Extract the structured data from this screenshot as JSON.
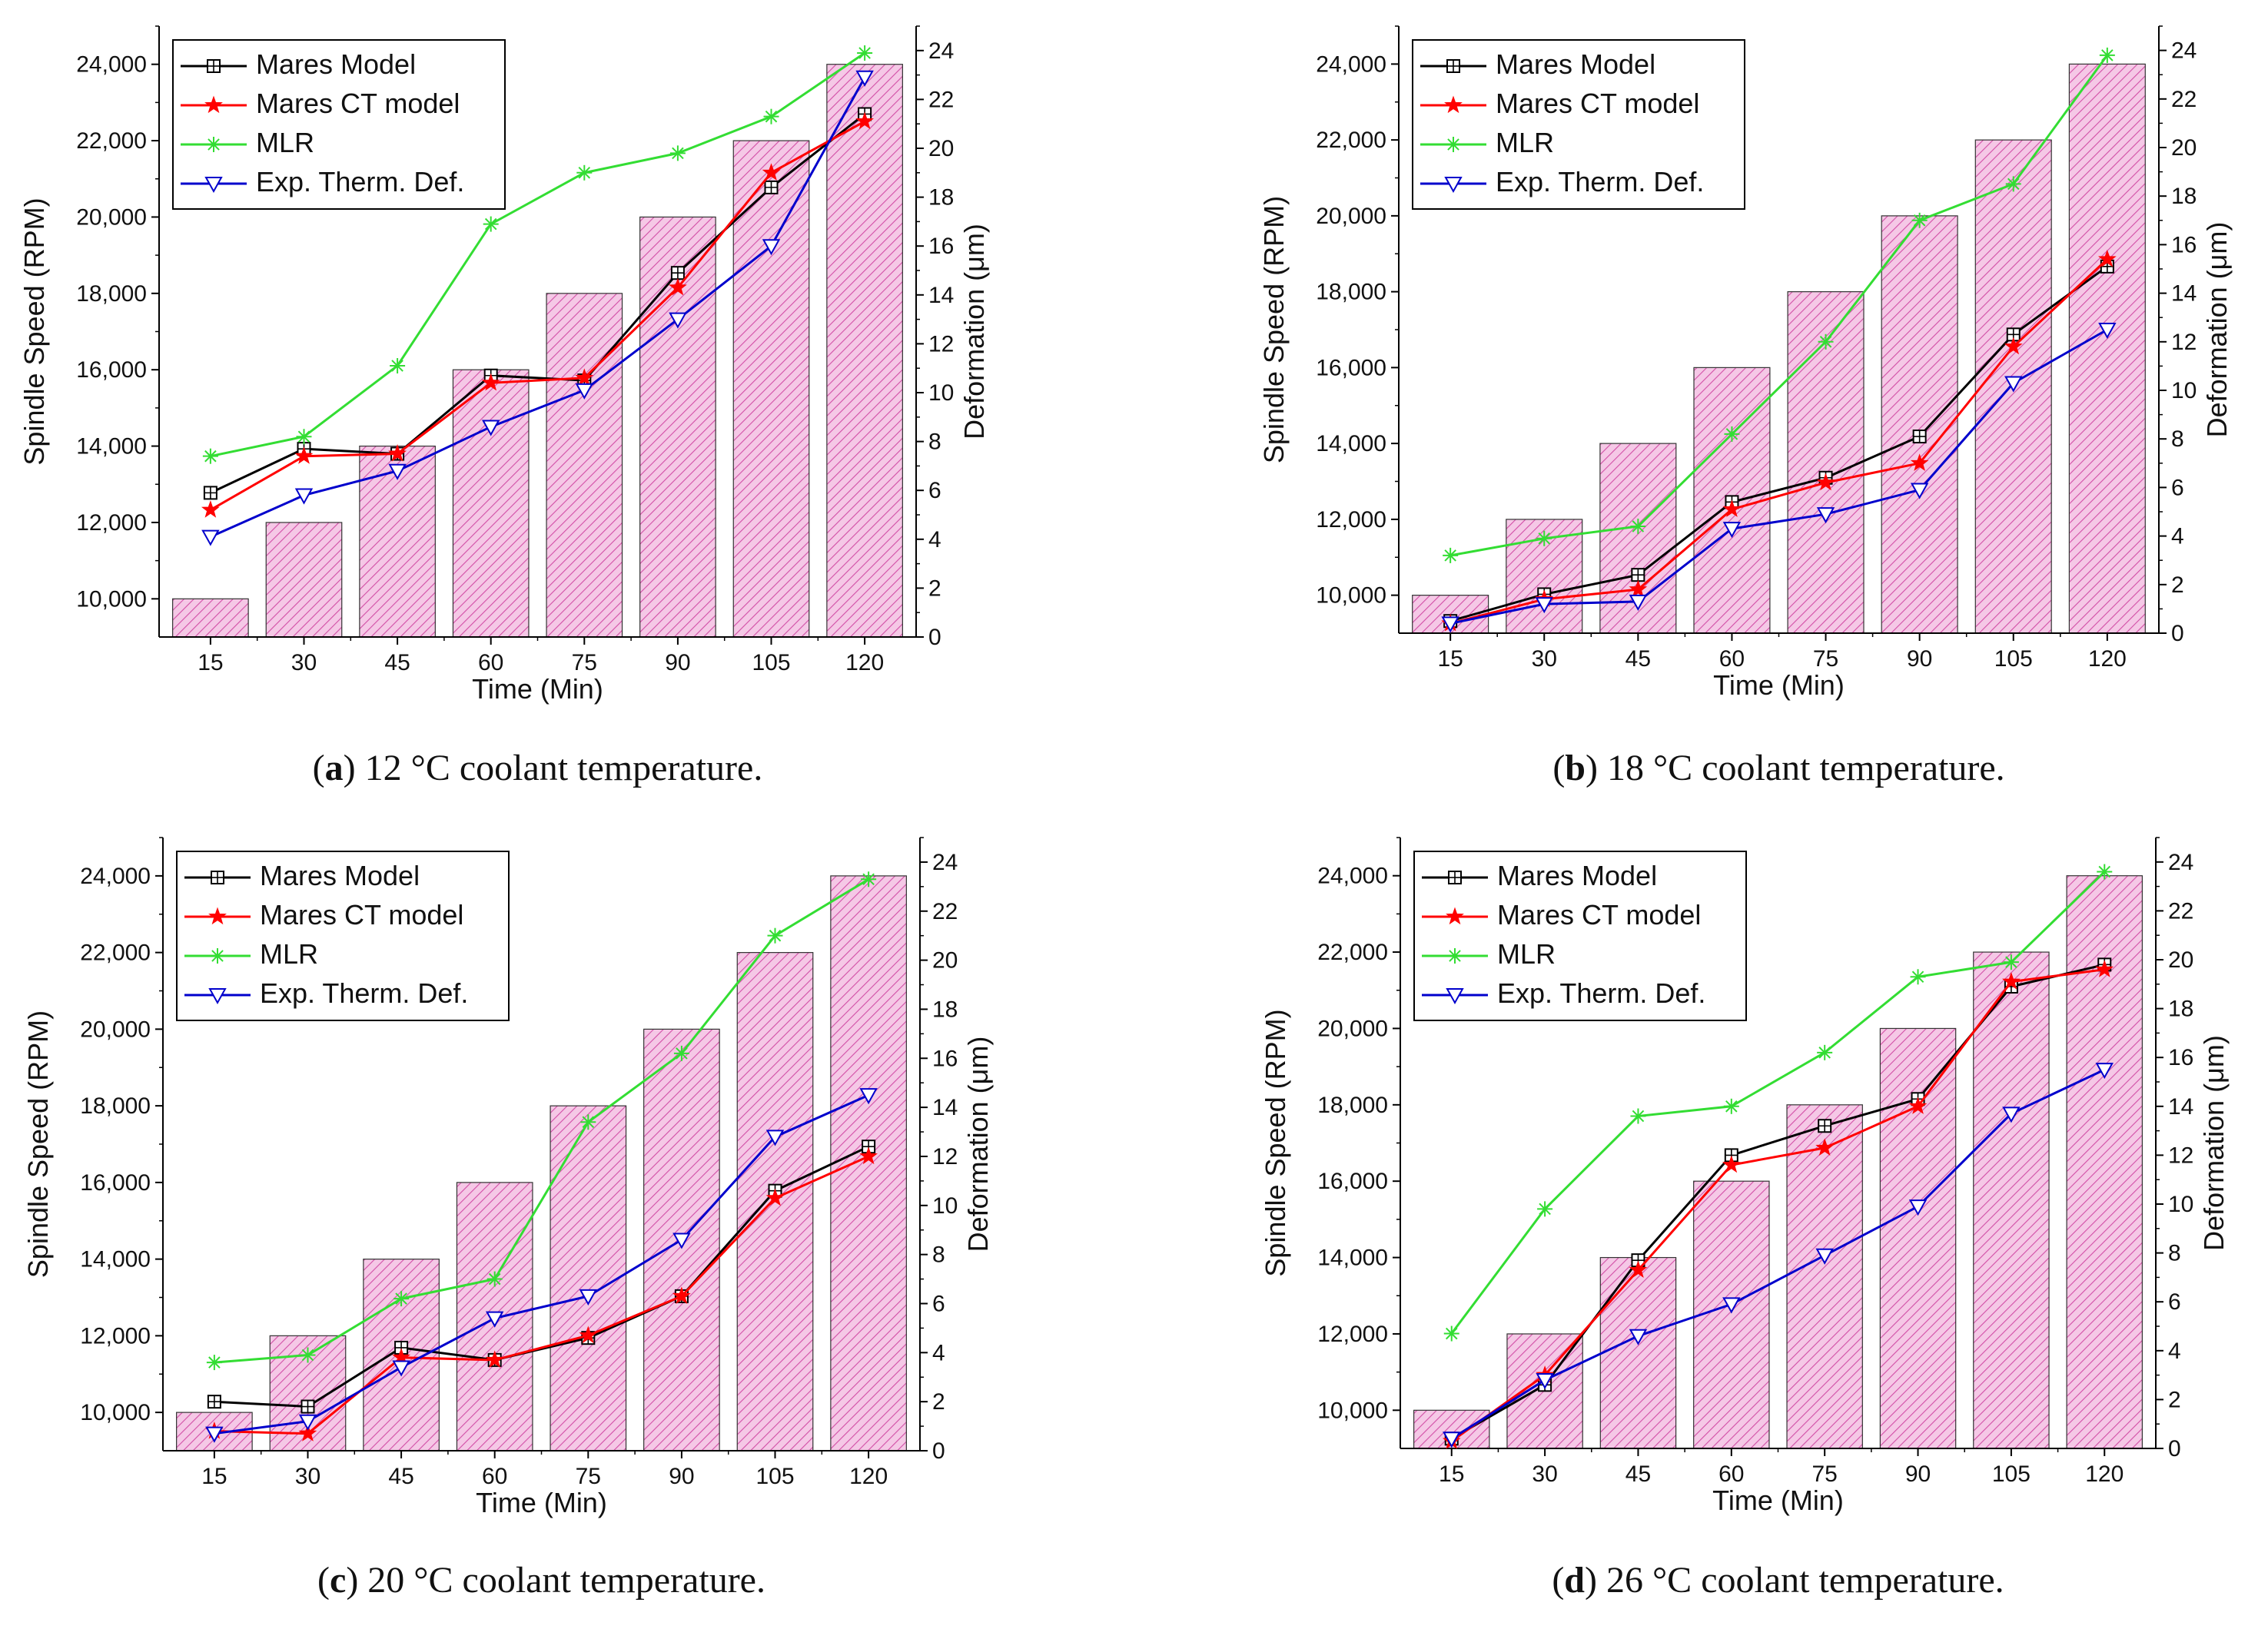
{
  "figure": {
    "colors": {
      "bar_fill": "#f5c8e6",
      "bar_hatch": "#d24ea6",
      "bar_stroke": "#333333",
      "axis": "#000000"
    },
    "legend_labels": [
      "Mares Model",
      "Mares CT model",
      "MLR",
      "Exp. Therm. Def."
    ]
  },
  "chart_data": [
    {
      "panel_id": "a",
      "type": "bar+line",
      "categories": [
        "15",
        "30",
        "45",
        "60",
        "75",
        "90",
        "105",
        "120"
      ],
      "xlabel": "Time (Min)",
      "ylabel": "Spindle Speed (RPM)",
      "ylabel2": "Deformation (μm)",
      "ylim": [
        9000,
        25000
      ],
      "ylim2": [
        0,
        25
      ],
      "yticks": [
        "10,000",
        "12,000",
        "14,000",
        "16,000",
        "18,000",
        "20,000",
        "22,000",
        "24,000"
      ],
      "yticks2": [
        "0",
        "2",
        "4",
        "6",
        "8",
        "10",
        "12",
        "14",
        "16",
        "18",
        "20",
        "22",
        "24"
      ],
      "bars": [
        10000,
        12000,
        14000,
        16000,
        18000,
        20000,
        22000,
        24000
      ],
      "legend_position": "top-left",
      "series": [
        {
          "name": "Mares Model",
          "color": "#000000",
          "marker": "square-plus",
          "values": [
            5.9,
            7.7,
            7.5,
            10.7,
            10.5,
            14.9,
            18.4,
            21.4
          ]
        },
        {
          "name": "Mares CT model",
          "color": "#ff0000",
          "marker": "star",
          "values": [
            5.2,
            7.4,
            7.5,
            10.4,
            10.6,
            14.3,
            19.0,
            21.1
          ]
        },
        {
          "name": "MLR",
          "color": "#33dd33",
          "marker": "asterisk",
          "values": [
            7.4,
            8.2,
            11.1,
            16.9,
            19.0,
            19.8,
            21.3,
            23.9
          ]
        },
        {
          "name": "Exp. Therm. Def.",
          "color": "#0000cc",
          "marker": "triangle-down",
          "values": [
            4.1,
            5.8,
            6.8,
            8.6,
            10.1,
            13.0,
            16.0,
            22.9
          ]
        }
      ],
      "caption": {
        "letter": "a",
        "text": ") 12 °C coolant temperature."
      }
    },
    {
      "panel_id": "b",
      "type": "bar+line",
      "categories": [
        "15",
        "30",
        "45",
        "60",
        "75",
        "90",
        "105",
        "120"
      ],
      "xlabel": "Time (Min)",
      "ylabel": "Spindle Speed (RPM)",
      "ylabel2": "Deformation (μm)",
      "ylim": [
        9000,
        25000
      ],
      "ylim2": [
        0,
        25
      ],
      "yticks": [
        "10,000",
        "12,000",
        "14,000",
        "16,000",
        "18,000",
        "20,000",
        "22,000",
        "24,000"
      ],
      "yticks2": [
        "0",
        "2",
        "4",
        "6",
        "8",
        "10",
        "12",
        "14",
        "16",
        "18",
        "20",
        "22",
        "24"
      ],
      "bars": [
        10000,
        12000,
        14000,
        16000,
        18000,
        20000,
        22000,
        24000
      ],
      "legend_position": "top-left",
      "series": [
        {
          "name": "Mares Model",
          "color": "#000000",
          "marker": "square-plus",
          "values": [
            0.5,
            1.6,
            2.4,
            5.4,
            6.4,
            8.1,
            12.3,
            15.1
          ]
        },
        {
          "name": "Mares CT model",
          "color": "#ff0000",
          "marker": "star",
          "values": [
            0.4,
            1.4,
            1.8,
            5.1,
            6.2,
            7.0,
            11.8,
            15.4
          ]
        },
        {
          "name": "MLR",
          "color": "#33dd33",
          "marker": "asterisk",
          "values": [
            3.2,
            3.9,
            4.4,
            8.2,
            12.0,
            17.0,
            18.5,
            23.8
          ]
        },
        {
          "name": "Exp. Therm. Def.",
          "color": "#0000cc",
          "marker": "triangle-down",
          "values": [
            0.4,
            1.2,
            1.3,
            4.3,
            4.9,
            5.9,
            10.3,
            12.5
          ]
        }
      ],
      "caption": {
        "letter": "b",
        "text": ") 18 °C coolant temperature."
      }
    },
    {
      "panel_id": "c",
      "type": "bar+line",
      "categories": [
        "15",
        "30",
        "45",
        "60",
        "75",
        "90",
        "105",
        "120"
      ],
      "xlabel": "Time (Min)",
      "ylabel": "Spindle Speed (RPM)",
      "ylabel2": "Deformation (μm)",
      "ylim": [
        9000,
        25000
      ],
      "ylim2": [
        0,
        25
      ],
      "yticks": [
        "10,000",
        "12,000",
        "14,000",
        "16,000",
        "18,000",
        "20,000",
        "22,000",
        "24,000"
      ],
      "yticks2": [
        "0",
        "2",
        "4",
        "6",
        "8",
        "10",
        "12",
        "14",
        "16",
        "18",
        "20",
        "22",
        "24"
      ],
      "bars": [
        10000,
        12000,
        14000,
        16000,
        18000,
        20000,
        22000,
        24000
      ],
      "legend_position": "top-left",
      "series": [
        {
          "name": "Mares Model",
          "color": "#000000",
          "marker": "square-plus",
          "values": [
            2.0,
            1.8,
            4.2,
            3.7,
            4.6,
            6.3,
            10.6,
            12.4
          ]
        },
        {
          "name": "Mares CT model",
          "color": "#ff0000",
          "marker": "star",
          "values": [
            0.8,
            0.7,
            3.8,
            3.7,
            4.7,
            6.3,
            10.3,
            12.0
          ]
        },
        {
          "name": "MLR",
          "color": "#33dd33",
          "marker": "asterisk",
          "values": [
            3.6,
            3.9,
            6.2,
            7.0,
            13.4,
            16.2,
            21.0,
            23.3
          ]
        },
        {
          "name": "Exp. Therm. Def.",
          "color": "#0000cc",
          "marker": "triangle-down",
          "values": [
            0.7,
            1.2,
            3.4,
            5.4,
            6.3,
            8.6,
            12.8,
            14.5
          ]
        }
      ],
      "caption": {
        "letter": "c",
        "text": ") 20 °C coolant temperature."
      }
    },
    {
      "panel_id": "d",
      "type": "bar+line",
      "categories": [
        "15",
        "30",
        "45",
        "60",
        "75",
        "90",
        "105",
        "120"
      ],
      "xlabel": "Time (Min)",
      "ylabel": "Spindle Speed (RPM)",
      "ylabel2": "Deformation (μm)",
      "ylim": [
        9000,
        25000
      ],
      "ylim2": [
        0,
        25
      ],
      "yticks": [
        "10,000",
        "12,000",
        "14,000",
        "16,000",
        "18,000",
        "20,000",
        "22,000",
        "24,000"
      ],
      "yticks2": [
        "0",
        "2",
        "4",
        "6",
        "8",
        "10",
        "12",
        "14",
        "16",
        "18",
        "20",
        "22",
        "24"
      ],
      "bars": [
        10000,
        12000,
        14000,
        16000,
        18000,
        20000,
        22000,
        24000
      ],
      "legend_position": "top-left",
      "series": [
        {
          "name": "Mares Model",
          "color": "#000000",
          "marker": "square-plus",
          "values": [
            0.4,
            2.6,
            7.7,
            12.0,
            13.2,
            14.3,
            18.9,
            19.8
          ]
        },
        {
          "name": "Mares CT model",
          "color": "#ff0000",
          "marker": "star",
          "values": [
            0.3,
            3.0,
            7.3,
            11.6,
            12.3,
            14.0,
            19.1,
            19.6
          ]
        },
        {
          "name": "MLR",
          "color": "#33dd33",
          "marker": "asterisk",
          "values": [
            4.7,
            9.8,
            13.6,
            14.0,
            16.2,
            19.3,
            19.9,
            23.6
          ]
        },
        {
          "name": "Exp. Therm. Def.",
          "color": "#0000cc",
          "marker": "triangle-down",
          "values": [
            0.4,
            2.8,
            4.6,
            5.9,
            7.9,
            9.9,
            13.7,
            15.5
          ]
        }
      ],
      "caption": {
        "letter": "d",
        "text": ") 26 °C coolant temperature."
      }
    }
  ]
}
